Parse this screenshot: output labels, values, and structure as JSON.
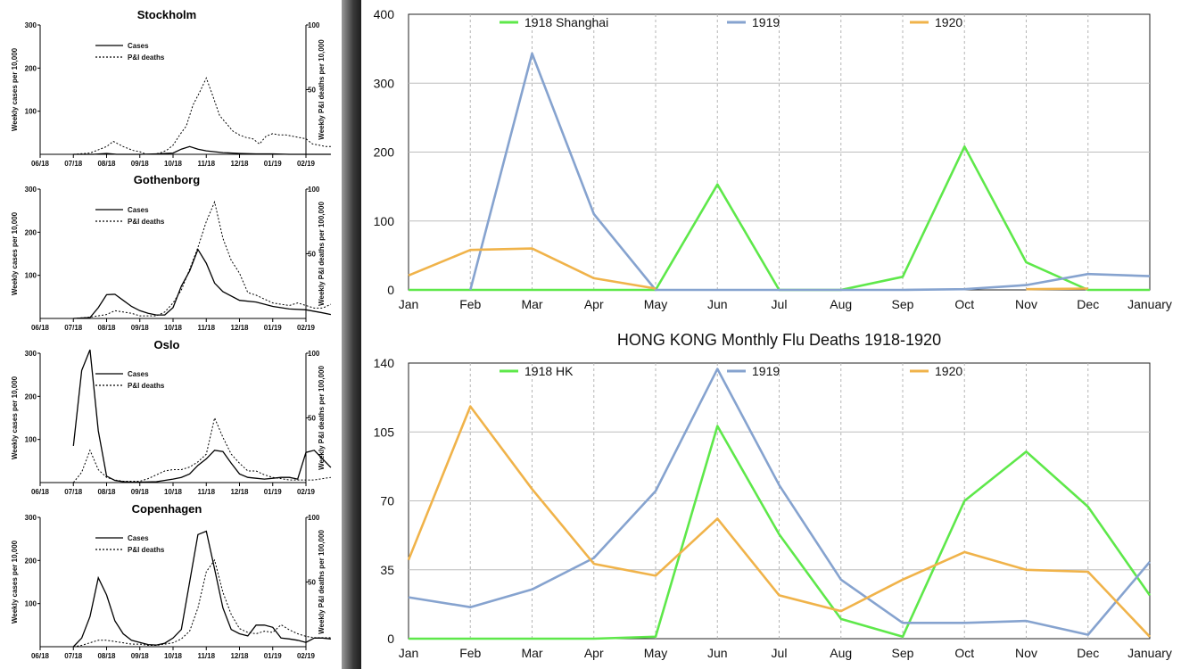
{
  "colors": {
    "series_green": "#5ee84a",
    "series_blue": "#86a3cf",
    "series_orange": "#f0b34a"
  },
  "chart_data": [
    {
      "type": "line",
      "title": "Stockholm",
      "x": [
        "06/18",
        "07/18",
        "08/18",
        "09/18",
        "10/18",
        "11/18",
        "12/18",
        "01/19",
        "02/19"
      ],
      "y_left": {
        "label": "Weekly cases per 10,000",
        "ticks": [
          100,
          200,
          300
        ],
        "lim": [
          0,
          300
        ]
      },
      "y_right": {
        "label": "Weekly P&I deaths per 10,000",
        "ticks": [
          50,
          100
        ],
        "lim": [
          0,
          100
        ]
      },
      "series": [
        {
          "name": "Cases",
          "axis": "left",
          "style": "solid",
          "x": [
            1.0,
            1.6,
            2.0,
            2.3,
            3.0,
            3.5,
            4.0,
            4.25,
            4.5,
            4.75,
            5.0,
            5.5,
            6.0,
            6.5,
            7.0,
            7.5,
            8.0,
            8.25,
            8.5,
            8.75
          ],
          "values": [
            0,
            0,
            2,
            0,
            0,
            1,
            3,
            12,
            18,
            12,
            8,
            4,
            2,
            1,
            1,
            0,
            0,
            0,
            0,
            0
          ]
        },
        {
          "name": "P&I deaths",
          "axis": "right",
          "style": "dashed",
          "x": [
            1.0,
            1.5,
            2.0,
            2.2,
            2.5,
            2.8,
            3.0,
            3.2,
            3.4,
            3.6,
            3.8,
            4.0,
            4.2,
            4.4,
            4.6,
            4.8,
            5.0,
            5.2,
            5.4,
            5.6,
            5.8,
            6.0,
            6.2,
            6.4,
            6.6,
            6.8,
            7.0,
            7.2,
            7.4,
            7.6,
            7.8,
            8.0,
            8.2,
            8.4,
            8.6,
            8.75
          ],
          "values": [
            0,
            1,
            6,
            10,
            6,
            3,
            2,
            0,
            0,
            1,
            3,
            7,
            15,
            22,
            38,
            48,
            59,
            45,
            30,
            24,
            18,
            15,
            13,
            12,
            8,
            14,
            16,
            15,
            15,
            14,
            13,
            12,
            8,
            7,
            6,
            6
          ]
        }
      ]
    },
    {
      "type": "line",
      "title": "Gothenborg",
      "x": [
        "06/18",
        "07/18",
        "08/18",
        "09/18",
        "10/18",
        "11/18",
        "12/18",
        "01/19",
        "02/19"
      ],
      "y_left": {
        "label": "Weekly cases per 10,000",
        "ticks": [
          100,
          200,
          300
        ],
        "lim": [
          0,
          300
        ]
      },
      "y_right": {
        "label": "Weekly P&I deaths per 100,000",
        "ticks": [
          50,
          100
        ],
        "lim": [
          0,
          100
        ]
      },
      "series": [
        {
          "name": "Cases",
          "axis": "left",
          "style": "solid",
          "x": [
            1.0,
            1.5,
            1.75,
            2.0,
            2.25,
            2.5,
            2.75,
            3.0,
            3.25,
            3.5,
            3.75,
            4.0,
            4.25,
            4.5,
            4.75,
            5.0,
            5.25,
            5.5,
            6.0,
            6.5,
            7.0,
            7.5,
            8.0,
            8.5,
            8.75
          ],
          "values": [
            0,
            2,
            25,
            55,
            56,
            42,
            28,
            18,
            12,
            8,
            8,
            25,
            75,
            110,
            160,
            128,
            82,
            62,
            42,
            38,
            28,
            22,
            20,
            13,
            9
          ]
        },
        {
          "name": "P&I deaths",
          "axis": "right",
          "style": "dashed",
          "x": [
            1.0,
            1.5,
            1.75,
            2.0,
            2.25,
            2.5,
            2.75,
            3.0,
            3.25,
            3.5,
            3.75,
            4.0,
            4.25,
            4.5,
            4.75,
            5.0,
            5.25,
            5.5,
            5.75,
            6.0,
            6.25,
            6.5,
            6.75,
            7.0,
            7.25,
            7.5,
            7.75,
            8.0,
            8.25,
            8.5,
            8.75
          ],
          "values": [
            0,
            1,
            2,
            3,
            6,
            5,
            4,
            2,
            2,
            2,
            5,
            12,
            22,
            38,
            55,
            75,
            90,
            62,
            45,
            35,
            20,
            18,
            15,
            12,
            11,
            10,
            12,
            10,
            8,
            8,
            11
          ]
        }
      ]
    },
    {
      "type": "line",
      "title": "Oslo",
      "x": [
        "06/18",
        "07/18",
        "08/18",
        "09/18",
        "10/18",
        "11/18",
        "12/18",
        "01/19",
        "02/19"
      ],
      "y_left": {
        "label": "Weekly cases per 10,000",
        "ticks": [
          100,
          200,
          300
        ],
        "lim": [
          0,
          300
        ]
      },
      "y_right": {
        "label": "Weekly P&I deaths per 100,000",
        "ticks": [
          50,
          100
        ],
        "lim": [
          0,
          100
        ]
      },
      "series": [
        {
          "name": "Cases",
          "axis": "left",
          "style": "solid",
          "x": [
            1.0,
            1.25,
            1.5,
            1.75,
            2.0,
            2.25,
            2.5,
            2.75,
            3.0,
            3.5,
            4.0,
            4.25,
            4.5,
            4.75,
            5.0,
            5.25,
            5.5,
            5.75,
            6.0,
            6.25,
            6.5,
            6.75,
            7.0,
            7.25,
            7.5,
            7.75,
            8.0,
            8.25,
            8.5,
            8.75
          ],
          "values": [
            85,
            260,
            308,
            120,
            15,
            5,
            2,
            1,
            1,
            2,
            8,
            12,
            20,
            40,
            55,
            75,
            72,
            45,
            20,
            12,
            10,
            8,
            10,
            12,
            12,
            8,
            70,
            75,
            55,
            35
          ]
        },
        {
          "name": "P&I deaths",
          "axis": "right",
          "style": "dashed",
          "x": [
            1.0,
            1.25,
            1.5,
            1.75,
            2.0,
            2.25,
            2.5,
            2.75,
            3.0,
            3.25,
            3.5,
            3.75,
            4.0,
            4.25,
            4.5,
            4.75,
            5.0,
            5.25,
            5.5,
            5.75,
            6.0,
            6.25,
            6.5,
            6.75,
            7.0,
            7.25,
            7.5,
            7.75,
            8.0,
            8.25,
            8.5,
            8.75
          ],
          "values": [
            0,
            8,
            25,
            10,
            4,
            2,
            1,
            1,
            1,
            3,
            6,
            9,
            10,
            10,
            12,
            16,
            22,
            50,
            35,
            22,
            15,
            9,
            9,
            6,
            4,
            3,
            2,
            2,
            2,
            2,
            3,
            4
          ]
        }
      ]
    },
    {
      "type": "line",
      "title": "Copenhagen",
      "x": [
        "06/18",
        "07/18",
        "08/18",
        "09/18",
        "10/18",
        "11/18",
        "12/18",
        "01/19",
        "02/19"
      ],
      "y_left": {
        "label": "Weekly cases per 10,000",
        "ticks": [
          100,
          200,
          300
        ],
        "lim": [
          0,
          300
        ]
      },
      "y_right": {
        "label": "Weekly P&I deaths per 100,000",
        "ticks": [
          50,
          100
        ],
        "lim": [
          0,
          100
        ]
      },
      "series": [
        {
          "name": "Cases",
          "axis": "left",
          "style": "solid",
          "x": [
            1.0,
            1.25,
            1.5,
            1.75,
            2.0,
            2.25,
            2.5,
            2.75,
            3.0,
            3.25,
            3.5,
            3.75,
            4.0,
            4.25,
            4.5,
            4.75,
            5.0,
            5.25,
            5.5,
            5.75,
            6.0,
            6.25,
            6.5,
            6.75,
            7.0,
            7.25,
            7.5,
            7.75,
            8.0,
            8.25,
            8.5,
            8.75
          ],
          "values": [
            0,
            20,
            70,
            160,
            120,
            60,
            30,
            15,
            10,
            5,
            4,
            8,
            20,
            40,
            150,
            260,
            268,
            180,
            90,
            40,
            30,
            25,
            50,
            50,
            45,
            20,
            18,
            15,
            10,
            20,
            20,
            18
          ]
        },
        {
          "name": "P&I deaths",
          "axis": "right",
          "style": "dashed",
          "x": [
            1.0,
            1.25,
            1.5,
            1.75,
            2.0,
            2.25,
            2.5,
            2.75,
            3.0,
            3.25,
            3.5,
            3.75,
            4.0,
            4.25,
            4.5,
            4.75,
            5.0,
            5.25,
            5.5,
            5.75,
            6.0,
            6.25,
            6.5,
            6.75,
            7.0,
            7.25,
            7.5,
            7.75,
            8.0,
            8.25,
            8.5,
            8.75
          ],
          "values": [
            0,
            1,
            3,
            5,
            5,
            4,
            3,
            2,
            2,
            1,
            1,
            2,
            3,
            6,
            12,
            30,
            58,
            67,
            42,
            25,
            14,
            11,
            10,
            12,
            11,
            17,
            13,
            10,
            8,
            7,
            7,
            7
          ]
        }
      ]
    },
    {
      "type": "line",
      "title": "",
      "categories": [
        "Jan",
        "Feb",
        "Mar",
        "Apr",
        "May",
        "Jun",
        "Jul",
        "Aug",
        "Sep",
        "Oct",
        "Nov",
        "Dec",
        "January"
      ],
      "y_ticks": [
        0,
        100,
        200,
        300,
        400
      ],
      "ylim": [
        0,
        400
      ],
      "grid": true,
      "legend": "top",
      "series": [
        {
          "name": "1918 Shanghai",
          "color_key": "series_green",
          "values": [
            0,
            0,
            0,
            0,
            0,
            153,
            0,
            0,
            19,
            208,
            40,
            0,
            0
          ]
        },
        {
          "name": "1919",
          "color_key": "series_blue",
          "values": [
            null,
            0,
            343,
            110,
            0,
            0,
            0,
            0,
            0,
            1,
            7,
            23,
            20
          ]
        },
        {
          "name": "1920",
          "color_key": "series_orange",
          "values": [
            21,
            58,
            60,
            17,
            2,
            null,
            null,
            null,
            null,
            null,
            1,
            2,
            null
          ]
        }
      ]
    },
    {
      "type": "line",
      "title": "HONG KONG Monthly Flu Deaths 1918-1920",
      "categories": [
        "Jan",
        "Feb",
        "Mar",
        "Apr",
        "May",
        "Jun",
        "Jul",
        "Aug",
        "Sep",
        "Oct",
        "Nov",
        "Dec",
        "January"
      ],
      "y_ticks": [
        0,
        35,
        70,
        105,
        140
      ],
      "ylim": [
        0,
        140
      ],
      "grid": true,
      "legend": "top",
      "series": [
        {
          "name": "1918 HK",
          "color_key": "series_green",
          "values": [
            0,
            0,
            0,
            0,
            1,
            108,
            53,
            10,
            1,
            70,
            95,
            67,
            22
          ]
        },
        {
          "name": "1919",
          "color_key": "series_blue",
          "values": [
            21,
            16,
            25,
            41,
            75,
            137,
            78,
            30,
            8,
            8,
            9,
            2,
            39
          ]
        },
        {
          "name": "1920",
          "color_key": "series_orange",
          "values": [
            40,
            118,
            76,
            38,
            32,
            61,
            22,
            14,
            30,
            44,
            35,
            34,
            1
          ]
        }
      ]
    }
  ]
}
